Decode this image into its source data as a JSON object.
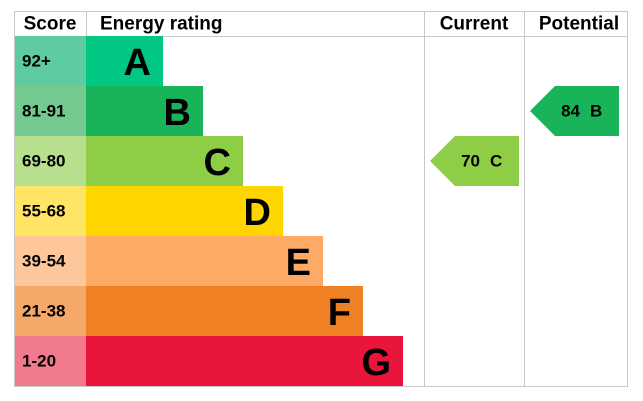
{
  "header": {
    "score": "Score",
    "rating": "Energy rating",
    "current": "Current",
    "potential": "Potential"
  },
  "rows": [
    {
      "score": "92+",
      "band": "A",
      "color": "#00c781",
      "score_color": "#5fcba0"
    },
    {
      "score": "81-91",
      "band": "B",
      "color": "#19b459",
      "score_color": "#73c98f"
    },
    {
      "score": "69-80",
      "band": "C",
      "color": "#8dce46",
      "score_color": "#b8df8e"
    },
    {
      "score": "55-68",
      "band": "D",
      "color": "#ffd500",
      "score_color": "#ffe466"
    },
    {
      "score": "39-54",
      "band": "E",
      "color": "#fcaa65",
      "score_color": "#fdc79b"
    },
    {
      "score": "21-38",
      "band": "F",
      "color": "#ef8023",
      "score_color": "#f4a96b"
    },
    {
      "score": "1-20",
      "band": "G",
      "color": "#e9153b",
      "score_color": "#f17b8c"
    }
  ],
  "current": {
    "score": 70,
    "band": "C"
  },
  "potential": {
    "score": 84,
    "band": "B"
  }
}
